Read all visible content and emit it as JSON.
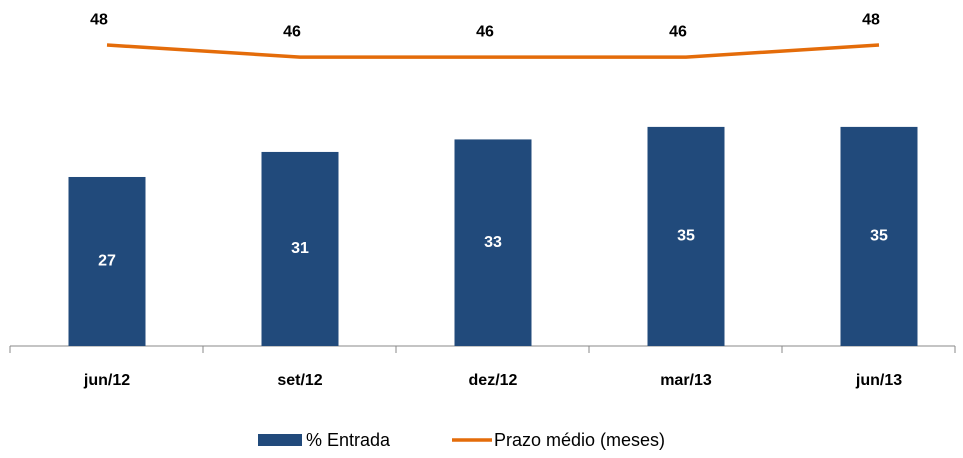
{
  "chart_data": {
    "type": "bar",
    "categories": [
      "jun/12",
      "set/12",
      "dez/12",
      "mar/13",
      "jun/13"
    ],
    "series": [
      {
        "name": "% Entrada",
        "type": "bar",
        "color": "#214a7b",
        "values": [
          27,
          31,
          33,
          35,
          35
        ]
      },
      {
        "name": "Prazo médio (meses)",
        "type": "line",
        "axis": "y2",
        "color": "#e46c0a",
        "values": [
          48,
          46,
          46,
          46,
          48
        ]
      }
    ],
    "ylim": [
      0,
      50
    ],
    "y2lim": [
      -2,
      50
    ]
  }
}
